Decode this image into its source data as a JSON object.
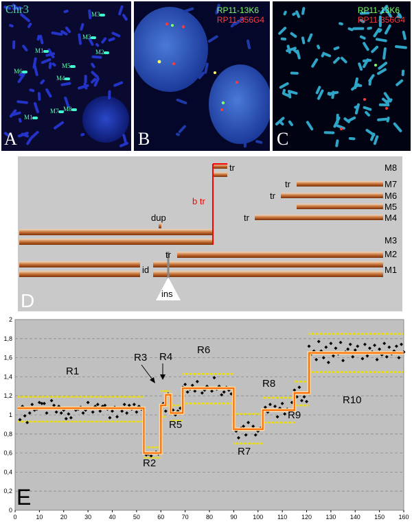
{
  "panelA": {
    "label": "A",
    "title": "Chr3",
    "markers": [
      {
        "text": "M3"
      },
      {
        "text": "M1"
      },
      {
        "text": "M3"
      },
      {
        "text": "M2"
      },
      {
        "text": "M6"
      },
      {
        "text": "M5"
      },
      {
        "text": "M4"
      },
      {
        "text": "M7"
      },
      {
        "text": "M8"
      },
      {
        "text": "M1"
      }
    ]
  },
  "panelB": {
    "label": "B",
    "probe1": "RP11-13K6",
    "probe2": "RP11-356G4",
    "probe1_color": "#7dff6a",
    "probe2_color": "#ff3a3a"
  },
  "panelC": {
    "label": "C",
    "probe1": "RP11-13K6",
    "probe2": "RP11-356G4"
  },
  "panelD": {
    "label": "D",
    "rows": [
      "M8",
      "M7",
      "M6",
      "M5",
      "M4",
      "M3",
      "M2",
      "M1"
    ],
    "annotations": {
      "tr": "tr",
      "btr": "b tr",
      "dup": "dup",
      "id": "id",
      "ins": "ins"
    },
    "colors": {
      "bar_light": "#f3d2b0",
      "bar_dark": "#8b3a10",
      "breakpoint": "#ff0000"
    }
  },
  "panelE": {
    "label": "E"
  },
  "chart_data": {
    "type": "scatter",
    "title": "",
    "xlabel": "",
    "ylabel": "",
    "xlim": [
      0,
      160
    ],
    "ylim": [
      0,
      2
    ],
    "xticks": [
      0,
      10,
      20,
      30,
      40,
      50,
      60,
      70,
      80,
      90,
      100,
      110,
      120,
      130,
      140,
      150,
      160
    ],
    "yticks": [
      "0",
      "0,2",
      "0,4",
      "0,6",
      "0,8",
      "1",
      "1,2",
      "1,4",
      "1,6",
      "1,8",
      "2"
    ],
    "grid": "horizontal dashed",
    "colors": {
      "points": "#000000",
      "segments": "#ff6a00",
      "thresholds": "#f0e000",
      "background": "#c0c0c0"
    },
    "regions": [
      {
        "label": "R1",
        "x": [
          1,
          53
        ],
        "mean": 1.07,
        "upper": 1.19,
        "lower": 0.93
      },
      {
        "label": "R2",
        "x": [
          53,
          60
        ],
        "mean": 0.6,
        "upper": 0.66,
        "lower": 0.55
      },
      {
        "label": "R3",
        "x": [
          60,
          62
        ],
        "mean": 1.1,
        "upper": 1.25,
        "lower": 0.98
      },
      {
        "label": "R4",
        "x": [
          62,
          64
        ],
        "mean": 1.21,
        "upper": 1.25,
        "lower": 1.1
      },
      {
        "label": "R5",
        "x": [
          64,
          69
        ],
        "mean": 1.02,
        "upper": 1.1,
        "lower": 0.94
      },
      {
        "label": "R6",
        "x": [
          69,
          90
        ],
        "mean": 1.28,
        "upper": 1.43,
        "lower": 1.12
      },
      {
        "label": "R7",
        "x": [
          90,
          102
        ],
        "mean": 0.85,
        "upper": 1.01,
        "lower": 0.7
      },
      {
        "label": "R8",
        "x": [
          102,
          115
        ],
        "mean": 1.05,
        "upper": 1.18,
        "lower": 0.92
      },
      {
        "label": "R9",
        "x": [
          115,
          121
        ],
        "mean": 1.23,
        "upper": 1.35,
        "lower": 1.1
      },
      {
        "label": "R10",
        "x": [
          121,
          160
        ],
        "mean": 1.65,
        "upper": 1.85,
        "lower": 1.45
      }
    ],
    "points": [
      [
        2,
        0.95
      ],
      [
        3,
        1.09
      ],
      [
        4,
        0.99
      ],
      [
        5,
        0.92
      ],
      [
        6,
        1.02
      ],
      [
        7,
        1.11
      ],
      [
        8,
        1.05
      ],
      [
        9,
        1.06
      ],
      [
        10,
        1.13
      ],
      [
        11,
        1.12
      ],
      [
        12,
        1.12
      ],
      [
        13,
        1.02
      ],
      [
        14,
        1.07
      ],
      [
        15,
        1.15
      ],
      [
        16,
        1.1
      ],
      [
        17,
        1.03
      ],
      [
        18,
        1.09
      ],
      [
        19,
        1.02
      ],
      [
        20,
        1.05
      ],
      [
        21,
        0.96
      ],
      [
        22,
        1.01
      ],
      [
        23,
        0.97
      ],
      [
        24,
        1.07
      ],
      [
        25,
        1.05
      ],
      [
        26,
        1.06
      ],
      [
        27,
        1.08
      ],
      [
        28,
        1.02
      ],
      [
        29,
        1.05
      ],
      [
        30,
        1.13
      ],
      [
        31,
        1.07
      ],
      [
        32,
        1.03
      ],
      [
        33,
        1.09
      ],
      [
        34,
        1.11
      ],
      [
        35,
        1.04
      ],
      [
        36,
        1.09
      ],
      [
        37,
        1.1
      ],
      [
        38,
        1.06
      ],
      [
        39,
        0.97
      ],
      [
        40,
        1.04
      ],
      [
        41,
        1.08
      ],
      [
        42,
        0.98
      ],
      [
        43,
        1.07
      ],
      [
        44,
        1.04
      ],
      [
        45,
        1.11
      ],
      [
        46,
        1.02
      ],
      [
        47,
        1.1
      ],
      [
        48,
        1.06
      ],
      [
        49,
        1.11
      ],
      [
        50,
        1.03
      ],
      [
        51,
        1.09
      ],
      [
        52,
        1.06
      ],
      [
        53,
        0.62
      ],
      [
        54,
        0.58
      ],
      [
        55,
        0.59
      ],
      [
        56,
        0.57
      ],
      [
        57,
        0.6
      ],
      [
        58,
        0.61
      ],
      [
        59,
        0.59
      ],
      [
        60,
        1.08
      ],
      [
        61,
        1.12
      ],
      [
        62,
        1.04
      ],
      [
        63,
        1.22
      ],
      [
        64,
        1.02
      ],
      [
        65,
        1.05
      ],
      [
        66,
        1.0
      ],
      [
        67,
        1.04
      ],
      [
        68,
        1.07
      ],
      [
        69,
        1.29
      ],
      [
        70,
        1.32
      ],
      [
        71,
        1.24
      ],
      [
        72,
        1.27
      ],
      [
        73,
        1.31
      ],
      [
        74,
        1.25
      ],
      [
        75,
        1.35
      ],
      [
        76,
        1.28
      ],
      [
        77,
        1.23
      ],
      [
        78,
        1.26
      ],
      [
        79,
        1.3
      ],
      [
        80,
        1.28
      ],
      [
        81,
        1.25
      ],
      [
        82,
        1.39
      ],
      [
        83,
        1.27
      ],
      [
        84,
        1.3
      ],
      [
        85,
        1.21
      ],
      [
        86,
        1.24
      ],
      [
        87,
        1.29
      ],
      [
        88,
        1.26
      ],
      [
        89,
        1.22
      ],
      [
        90,
        0.91
      ],
      [
        91,
        0.83
      ],
      [
        92,
        0.76
      ],
      [
        93,
        0.86
      ],
      [
        94,
        0.88
      ],
      [
        95,
        0.79
      ],
      [
        96,
        0.92
      ],
      [
        97,
        0.85
      ],
      [
        98,
        0.88
      ],
      [
        99,
        0.79
      ],
      [
        100,
        0.83
      ],
      [
        101,
        0.86
      ],
      [
        102,
        0.97
      ],
      [
        103,
        1.08
      ],
      [
        104,
        1.03
      ],
      [
        105,
        1.11
      ],
      [
        106,
        1.05
      ],
      [
        107,
        1.09
      ],
      [
        108,
        0.98
      ],
      [
        109,
        1.07
      ],
      [
        110,
        1.12
      ],
      [
        111,
        1.01
      ],
      [
        112,
        1.06
      ],
      [
        113,
        1.04
      ],
      [
        114,
        1.13
      ],
      [
        115,
        1.26
      ],
      [
        116,
        1.19
      ],
      [
        117,
        1.29
      ],
      [
        118,
        1.15
      ],
      [
        119,
        1.19
      ],
      [
        120,
        1.14
      ],
      [
        121,
        1.72
      ],
      [
        122,
        1.64
      ],
      [
        123,
        1.67
      ],
      [
        124,
        1.58
      ],
      [
        125,
        1.77
      ],
      [
        126,
        1.67
      ],
      [
        127,
        1.6
      ],
      [
        128,
        1.71
      ],
      [
        129,
        1.55
      ],
      [
        130,
        1.75
      ],
      [
        131,
        1.62
      ],
      [
        132,
        1.7
      ],
      [
        133,
        1.64
      ],
      [
        134,
        1.76
      ],
      [
        135,
        1.57
      ],
      [
        136,
        1.66
      ],
      [
        137,
        1.69
      ],
      [
        138,
        1.74
      ],
      [
        139,
        1.61
      ],
      [
        140,
        1.68
      ],
      [
        141,
        1.72
      ],
      [
        142,
        1.65
      ],
      [
        143,
        1.59
      ],
      [
        144,
        1.74
      ],
      [
        145,
        1.62
      ],
      [
        146,
        1.7
      ],
      [
        147,
        1.66
      ],
      [
        148,
        1.73
      ],
      [
        149,
        1.58
      ],
      [
        150,
        1.69
      ],
      [
        151,
        1.63
      ],
      [
        152,
        1.75
      ],
      [
        153,
        1.61
      ],
      [
        154,
        1.71
      ],
      [
        155,
        1.64
      ],
      [
        156,
        1.67
      ],
      [
        157,
        1.72
      ],
      [
        158,
        1.6
      ],
      [
        159,
        1.74
      ],
      [
        160,
        1.66
      ]
    ]
  }
}
